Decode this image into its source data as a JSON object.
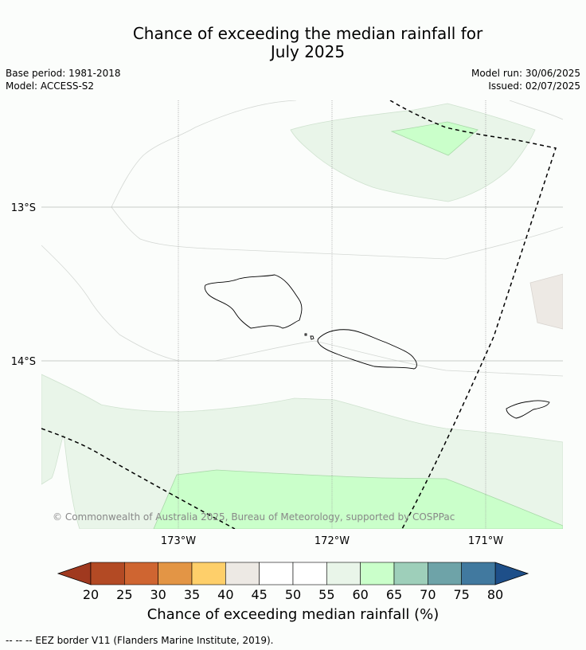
{
  "title_line1": "Chance of exceeding the median rainfall for",
  "title_line2": "July 2025",
  "meta": {
    "base_period": "Base period: 1981-2018",
    "model": "Model: ACCESS-S2",
    "model_run": "Model run: 30/06/2025",
    "issued": "Issued: 02/07/2025"
  },
  "map": {
    "lat_labels": [
      "13°S",
      "14°S"
    ],
    "lon_labels": [
      "173°W",
      "172°W",
      "171°W"
    ],
    "copyright": "© Commonwealth of Australia 2025, Bureau of Meteorology, supported by COSPPac"
  },
  "legend": {
    "title": "Chance of exceeding median rainfall (%)",
    "ticks": [
      "20",
      "25",
      "30",
      "35",
      "40",
      "45",
      "50",
      "55",
      "60",
      "65",
      "70",
      "75",
      "80"
    ],
    "colors": {
      "under": "#a0391f",
      "bins": [
        "#b34a24",
        "#cf6531",
        "#e39545",
        "#fecf6a",
        "#ede9e4",
        "#ffffff",
        "#ffffff",
        "#e9f5e9",
        "#caffca",
        "#9ecfba",
        "#6ea3a8",
        "#41799f"
      ],
      "over": "#1e4f89"
    }
  },
  "footer": "--  --  -- EEZ border V11 (Flanders Marine Institute, 2019)."
}
